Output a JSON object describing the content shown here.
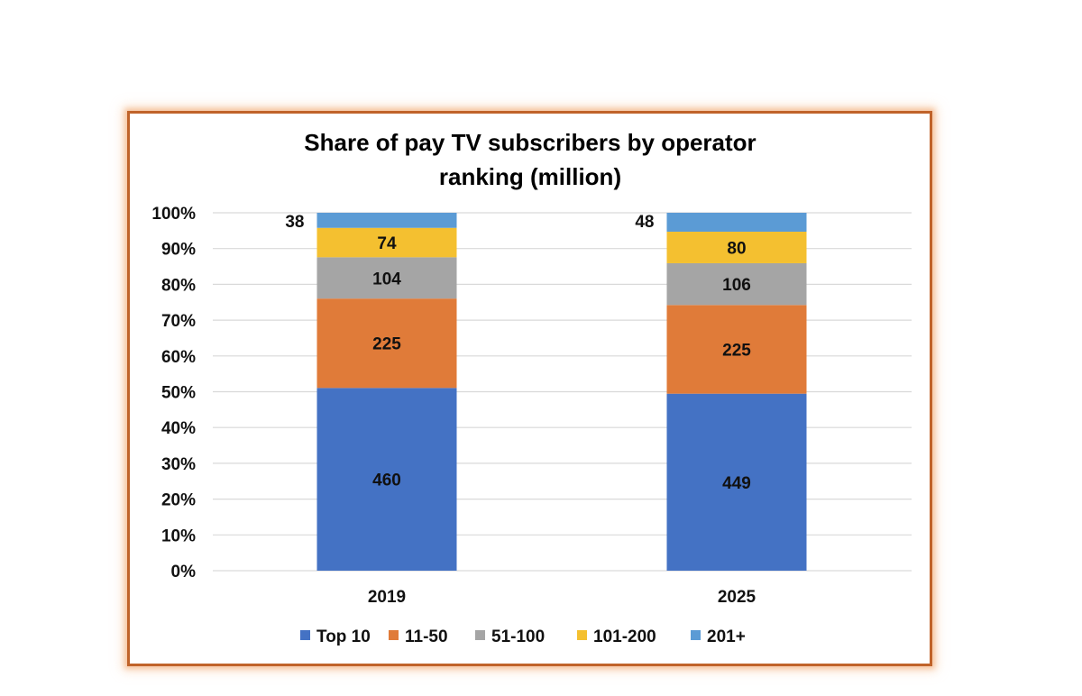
{
  "chart_data": {
    "type": "bar",
    "stacked": true,
    "normalized_percent": true,
    "title": "Share of pay TV subscribers by operator ranking (million)",
    "title_lines": [
      "Share of pay TV subscribers by operator",
      "ranking (million)"
    ],
    "xlabel": "",
    "ylabel": "",
    "ylim": [
      0,
      100
    ],
    "yticks": [
      "0%",
      "10%",
      "20%",
      "30%",
      "40%",
      "50%",
      "60%",
      "70%",
      "80%",
      "90%",
      "100%"
    ],
    "grid": true,
    "categories": [
      "2019",
      "2025"
    ],
    "series": [
      {
        "name": "Top 10",
        "values": [
          460,
          449
        ],
        "color": "#4472c4"
      },
      {
        "name": "11-50",
        "values": [
          225,
          225
        ],
        "color": "#e07b39"
      },
      {
        "name": "51-100",
        "values": [
          104,
          106
        ],
        "color": "#a5a5a5"
      },
      {
        "name": "101-200",
        "values": [
          74,
          80
        ],
        "color": "#f4c030"
      },
      {
        "name": "201+",
        "values": [
          38,
          48
        ],
        "color": "#5b9bd5"
      }
    ],
    "legend_position": "bottom",
    "data_labels": true
  },
  "frame": {
    "border_color": "#c0632a"
  }
}
